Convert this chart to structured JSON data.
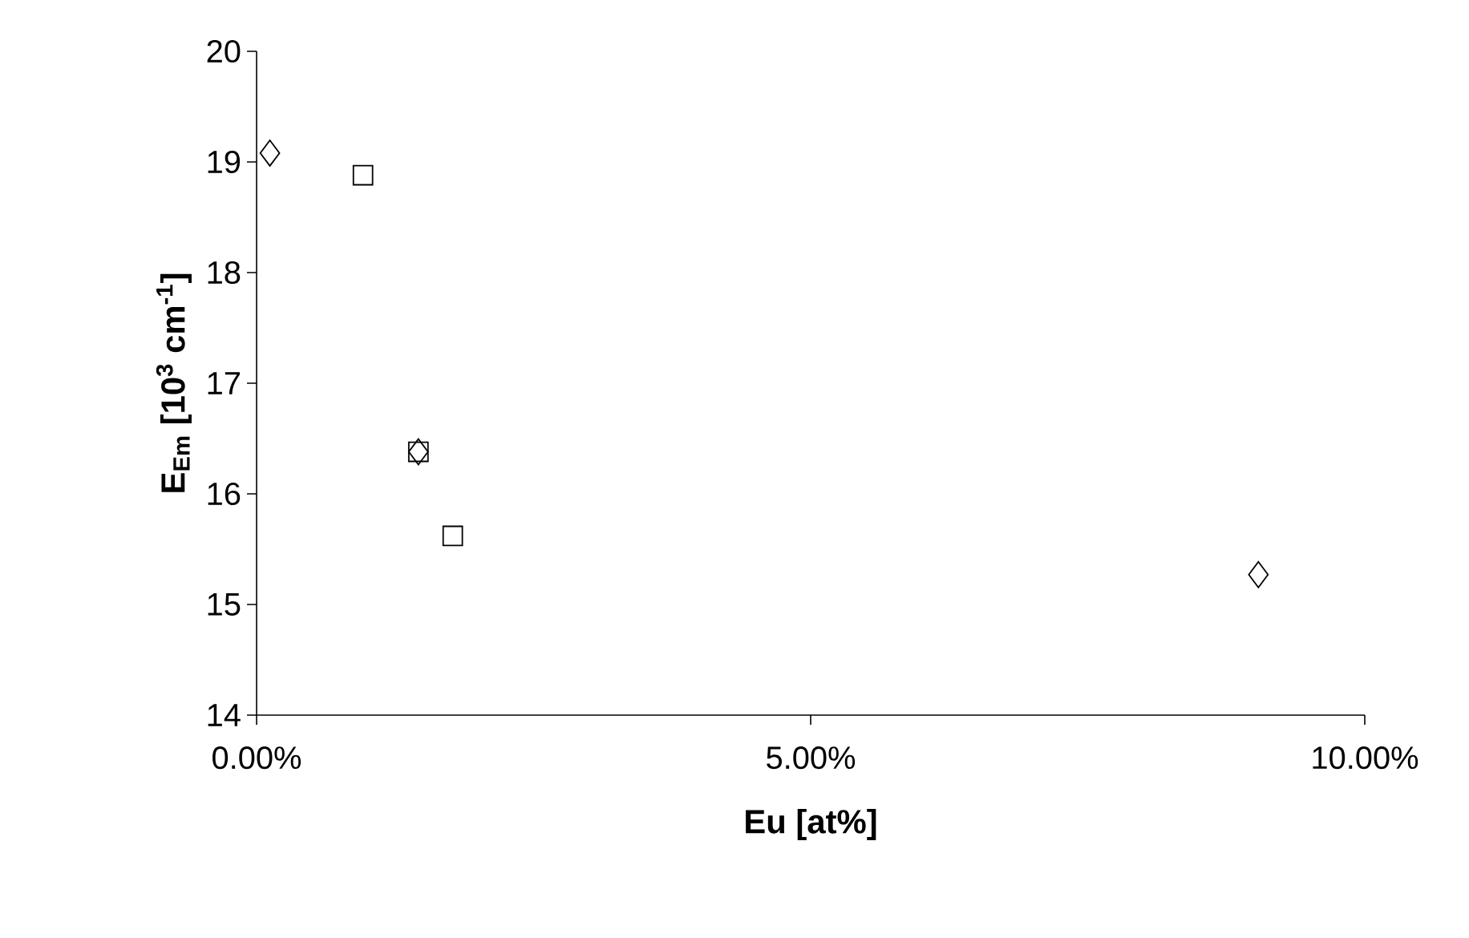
{
  "chart_data": {
    "type": "scatter",
    "xlabel": "Eu [at%]",
    "ylabel": "E$_{Em}$ [10$^{3}$ cm$^{-1}$]",
    "xlim": [
      0,
      10
    ],
    "xticks": [
      {
        "value": 0,
        "label": "0.00%"
      },
      {
        "value": 5,
        "label": "5.00%"
      },
      {
        "value": 10,
        "label": "10.00%"
      }
    ],
    "ylim": [
      14,
      20
    ],
    "yticks": [
      14,
      15,
      16,
      17,
      18,
      19,
      20
    ],
    "series": [
      {
        "color": "#000000",
        "marker": "diamond",
        "x": [
          0.12,
          1.46,
          9.04
        ],
        "values": [
          19.08,
          16.38,
          15.27
        ]
      },
      {
        "color": "#000000",
        "marker": "square",
        "x": [
          0.96,
          1.46,
          1.77
        ],
        "values": [
          18.88,
          16.38,
          15.62
        ]
      }
    ]
  }
}
